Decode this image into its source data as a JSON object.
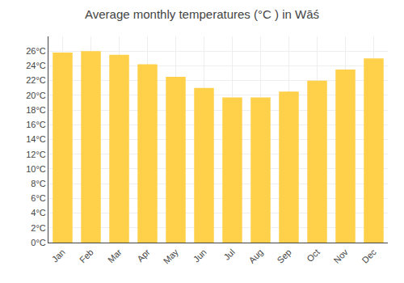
{
  "chart_data": {
    "type": "bar",
    "title": "Average monthly temperatures (°C ) in Wāś",
    "categories": [
      "Jan",
      "Feb",
      "Mar",
      "Apr",
      "May",
      "Jun",
      "Jul",
      "Aug",
      "Sep",
      "Oct",
      "Nov",
      "Dec"
    ],
    "values": [
      25.8,
      26.0,
      25.5,
      24.2,
      22.5,
      21.0,
      19.7,
      19.7,
      20.5,
      22.0,
      23.5,
      25.0
    ],
    "color": "#FFD04A",
    "ylim": [
      0,
      28
    ],
    "yticks": [
      {
        "value": 0,
        "label": "0°C"
      },
      {
        "value": 2,
        "label": "2°C"
      },
      {
        "value": 4,
        "label": "4°C"
      },
      {
        "value": 6,
        "label": "6°C"
      },
      {
        "value": 8,
        "label": "8°C"
      },
      {
        "value": 10,
        "label": "10°C"
      },
      {
        "value": 12,
        "label": "12°C"
      },
      {
        "value": 14,
        "label": "14°C"
      },
      {
        "value": 16,
        "label": "16°C"
      },
      {
        "value": 18,
        "label": "18°C"
      },
      {
        "value": 20,
        "label": "20°C"
      },
      {
        "value": 22,
        "label": "22°C"
      },
      {
        "value": 24,
        "label": "24°C"
      },
      {
        "value": 26,
        "label": "26°C"
      }
    ],
    "grid": true
  }
}
